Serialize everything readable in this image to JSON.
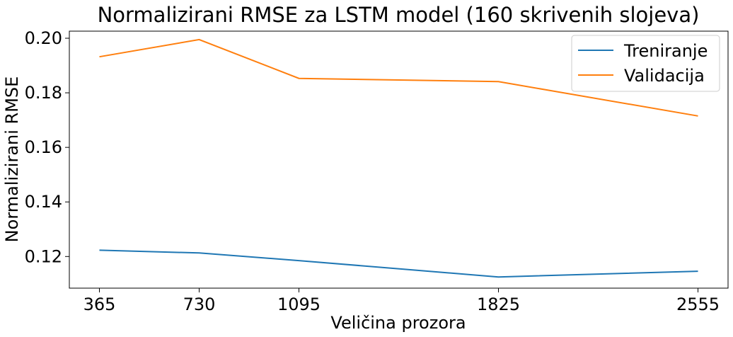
{
  "chart_data": {
    "type": "line",
    "title": "Normalizirani RMSE za LSTM model (160 skrivenih slojeva)",
    "xlabel": "Veličina prozora",
    "ylabel": "Normalizirani RMSE",
    "x": [
      365,
      730,
      1095,
      1825,
      2555
    ],
    "x_tick_labels": [
      "365",
      "730",
      "1095",
      "1825",
      "2555"
    ],
    "y_ticks": [
      0.12,
      0.14,
      0.16,
      0.18,
      0.2
    ],
    "y_tick_labels": [
      "0.12",
      "0.14",
      "0.16",
      "0.18",
      "0.20"
    ],
    "xlim": [
      255,
      2665
    ],
    "ylim": [
      0.1084,
      0.2026
    ],
    "grid": false,
    "legend_position": "top-right",
    "series": [
      {
        "name": "Treniranje",
        "color": "#1f77b4",
        "values": [
          0.1223,
          0.1213,
          0.1185,
          0.1125,
          0.1146
        ]
      },
      {
        "name": "Validacija",
        "color": "#ff7f0e",
        "values": [
          0.1932,
          0.1995,
          0.1853,
          0.1841,
          0.1715
        ]
      }
    ]
  }
}
